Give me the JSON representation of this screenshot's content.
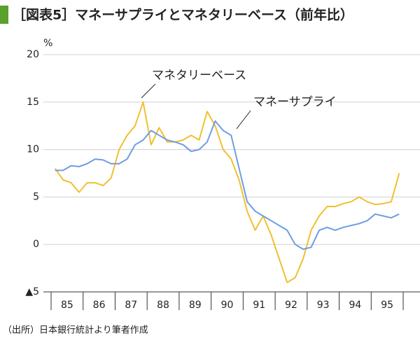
{
  "chart_data": {
    "type": "line",
    "title": "［図表5］マネーサプライとマネタリーベース（前年比）",
    "ylabel": "%",
    "source": "（出所）日本銀行統計より筆者作成",
    "categories": [
      "85",
      null,
      null,
      null,
      "86",
      null,
      null,
      null,
      "87",
      null,
      null,
      null,
      "88",
      null,
      null,
      null,
      "89",
      null,
      null,
      null,
      "90",
      null,
      null,
      null,
      "91",
      null,
      null,
      null,
      "92",
      null,
      null,
      null,
      "93",
      null,
      null,
      null,
      "94",
      null,
      null,
      null,
      "95",
      null,
      null,
      null
    ],
    "series": [
      {
        "name": "マネーサプライ",
        "color": "#6f9ce6",
        "values": [
          7.8,
          7.8,
          8.3,
          8.2,
          8.5,
          9.0,
          8.9,
          8.5,
          8.5,
          9.0,
          10.5,
          11.0,
          12.0,
          11.5,
          11.0,
          10.8,
          10.5,
          9.8,
          10.0,
          10.8,
          13.0,
          12.0,
          11.5,
          8.0,
          4.5,
          3.5,
          3.0,
          2.5,
          2.0,
          1.5,
          0.0,
          -0.5,
          -0.3,
          1.5,
          1.8,
          1.5,
          1.8,
          2.0,
          2.2,
          2.5,
          3.2,
          3.0,
          2.8,
          3.2
        ]
      },
      {
        "name": "マネタリーベース",
        "color": "#f0c030",
        "values": [
          8.0,
          6.8,
          6.5,
          5.5,
          6.5,
          6.5,
          6.2,
          7.0,
          10.0,
          11.5,
          12.5,
          15.0,
          10.5,
          12.3,
          10.8,
          10.8,
          11.0,
          11.5,
          11.0,
          14.0,
          12.5,
          10.0,
          9.0,
          6.8,
          3.5,
          1.5,
          3.0,
          1.0,
          -1.5,
          -4.0,
          -3.5,
          -1.5,
          1.5,
          3.0,
          4.0,
          4.0,
          4.3,
          4.5,
          5.0,
          4.5,
          4.2,
          4.3,
          4.5,
          7.5
        ]
      }
    ],
    "ylim": [
      -5,
      20
    ],
    "yticks": [
      {
        "value": -5,
        "label": "▲5"
      },
      0,
      5,
      10,
      15,
      20
    ],
    "grid": true
  }
}
